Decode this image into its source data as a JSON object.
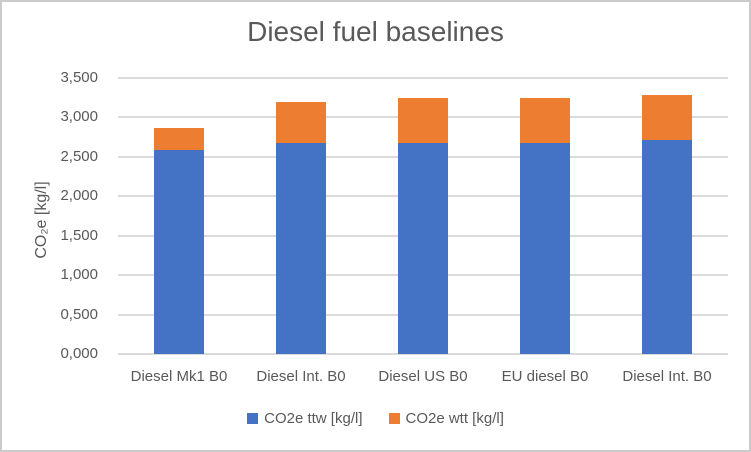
{
  "window": {
    "background": "#ffffff",
    "border_color": "#cbcbcb"
  },
  "chart_data": {
    "type": "bar",
    "stacked": true,
    "title": "Diesel fuel baselines",
    "ylabel": "CO₂e [kg/l]",
    "xlabel": "",
    "categories": [
      "Diesel Mk1 B0",
      "Diesel Int. B0",
      "Diesel US B0",
      "EU diesel B0",
      "Diesel Int. B0"
    ],
    "series": [
      {
        "name": "CO2e ttw [kg/l]",
        "color": "#4472C4",
        "values": [
          2.59,
          2.67,
          2.67,
          2.67,
          2.71
        ]
      },
      {
        "name": "CO2e wtt [kg/l]",
        "color": "#ED7D31",
        "values": [
          0.27,
          0.53,
          0.58,
          0.58,
          0.58
        ]
      }
    ],
    "totals": [
      2.86,
      3.2,
      3.25,
      3.25,
      3.29
    ],
    "ylim": [
      0,
      3.5
    ],
    "y_ticks": [
      {
        "value": 0.0,
        "label": "0,000"
      },
      {
        "value": 0.5,
        "label": "0,500"
      },
      {
        "value": 1.0,
        "label": "1,000"
      },
      {
        "value": 1.5,
        "label": "1,500"
      },
      {
        "value": 2.0,
        "label": "2,000"
      },
      {
        "value": 2.5,
        "label": "2,500"
      },
      {
        "value": 3.0,
        "label": "3,000"
      },
      {
        "value": 3.5,
        "label": "3,500"
      }
    ],
    "grid": true,
    "legend_position": "bottom",
    "colors": {
      "gridline": "#dbdbdb",
      "axis_line": "#d9d9d9",
      "text": "#595959"
    }
  }
}
